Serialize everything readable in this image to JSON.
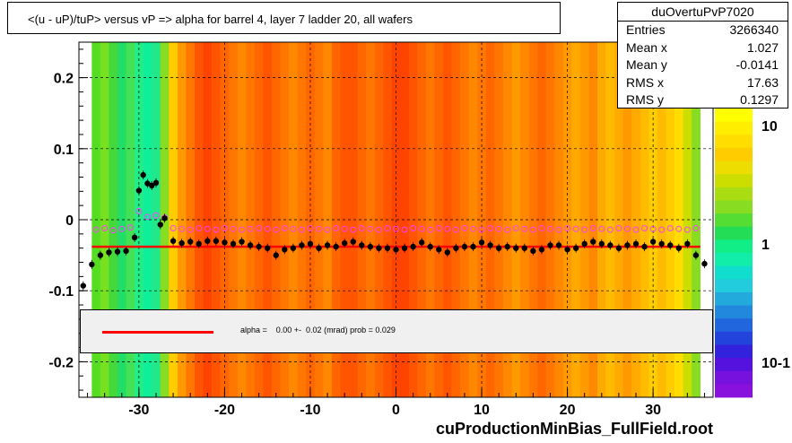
{
  "title": "<(u - uP)/tuP>  versus   vP => alpha for barrel 4, layer 7 ladder 20, all wafers",
  "stats": {
    "name": "duOvertuPvP7020",
    "rows": [
      {
        "key": "Entries",
        "value": "3266340"
      },
      {
        "key": "Mean x",
        "value": "1.027"
      },
      {
        "key": "Mean y",
        "value": "-0.0141"
      },
      {
        "key": "RMS x",
        "value": "17.63"
      },
      {
        "key": "RMS y",
        "value": "0.1297"
      }
    ]
  },
  "fit_label": "alpha =    0.00 +-  0.02 (mrad) prob = 0.029",
  "footer": "cuProductionMinBias_FullField.root",
  "colors": {
    "fit_line": "#ff0000",
    "profile_markers": "#000000",
    "open_markers": "#ff40ff"
  },
  "chart_data": {
    "type": "heatmap",
    "xlim": [
      -37,
      37
    ],
    "ylim": [
      -0.25,
      0.25
    ],
    "x_ticks": [
      "-30",
      "-20",
      "-10",
      "0",
      "10",
      "20",
      "30"
    ],
    "y_ticks": [
      "0.2",
      "0.1",
      "0",
      "-0.1",
      "-0.2"
    ],
    "x_tick_values": [
      -30,
      -20,
      -10,
      0,
      10,
      20,
      30
    ],
    "y_tick_values": [
      0.2,
      0.1,
      0,
      -0.1,
      -0.2
    ],
    "grid": true,
    "palette_ticks": [
      "10",
      "1",
      "10-1"
    ],
    "fit": {
      "type": "line",
      "y": -0.038,
      "x_range": [
        -35.5,
        35.5
      ]
    },
    "profile": {
      "name": "mean profile (filled)",
      "x": [
        -36.5,
        -35.5,
        -34.5,
        -33.5,
        -32.5,
        -31.5,
        -30.5,
        -30,
        -29.5,
        -29,
        -28.5,
        -28,
        -27.5,
        -27,
        -26,
        -25,
        -24,
        -23,
        -22,
        -21,
        -20,
        -19,
        -18,
        -17,
        -16,
        -15,
        -14,
        -13,
        -12,
        -11,
        -10,
        -9,
        -8,
        -7,
        -6,
        -5,
        -4,
        -3,
        -2,
        -1,
        0,
        1,
        2,
        3,
        4,
        5,
        6,
        7,
        8,
        9,
        10,
        11,
        12,
        13,
        14,
        15,
        16,
        17,
        18,
        19,
        20,
        21,
        22,
        23,
        24,
        25,
        26,
        27,
        28,
        29,
        30,
        31,
        32,
        33,
        34,
        35,
        36
      ],
      "y": [
        -0.093,
        -0.063,
        -0.05,
        -0.046,
        -0.045,
        -0.044,
        -0.025,
        0.041,
        0.063,
        0.051,
        0.048,
        0.052,
        -0.007,
        0.002,
        -0.03,
        -0.033,
        -0.031,
        -0.034,
        -0.03,
        -0.03,
        -0.032,
        -0.034,
        -0.031,
        -0.036,
        -0.038,
        -0.04,
        -0.05,
        -0.042,
        -0.04,
        -0.036,
        -0.034,
        -0.04,
        -0.036,
        -0.038,
        -0.033,
        -0.031,
        -0.036,
        -0.038,
        -0.04,
        -0.04,
        -0.042,
        -0.04,
        -0.038,
        -0.032,
        -0.038,
        -0.042,
        -0.046,
        -0.04,
        -0.038,
        -0.038,
        -0.032,
        -0.036,
        -0.04,
        -0.038,
        -0.04,
        -0.04,
        -0.044,
        -0.042,
        -0.036,
        -0.036,
        -0.042,
        -0.04,
        -0.034,
        -0.031,
        -0.034,
        -0.036,
        -0.04,
        -0.036,
        -0.034,
        -0.038,
        -0.031,
        -0.034,
        -0.036,
        -0.04,
        -0.034,
        -0.05,
        -0.062
      ]
    },
    "open_profile": {
      "name": "open markers",
      "x": [
        -35,
        -34,
        -33,
        -32,
        -31,
        -30,
        -29,
        -28,
        -27,
        -26,
        -25,
        -24,
        -23,
        -22,
        -21,
        -20,
        -19,
        -18,
        -17,
        -16,
        -15,
        -14,
        -13,
        -12,
        -11,
        -10,
        -9,
        -8,
        -7,
        -6,
        -5,
        -4,
        -3,
        -2,
        -1,
        0,
        1,
        2,
        3,
        4,
        5,
        6,
        7,
        8,
        9,
        10,
        11,
        12,
        13,
        14,
        15,
        16,
        17,
        18,
        19,
        20,
        21,
        22,
        23,
        24,
        25,
        26,
        27,
        28,
        29,
        30,
        31,
        32,
        33,
        34,
        35
      ],
      "y": [
        -0.014,
        -0.012,
        -0.015,
        -0.013,
        -0.011,
        0.012,
        0.004,
        0.006,
        0.003,
        -0.012,
        -0.013,
        -0.014,
        -0.012,
        -0.013,
        -0.014,
        -0.012,
        -0.013,
        -0.014,
        -0.013,
        -0.012,
        -0.013,
        -0.014,
        -0.012,
        -0.013,
        -0.014,
        -0.012,
        -0.013,
        -0.014,
        -0.012,
        -0.013,
        -0.014,
        -0.012,
        -0.013,
        -0.014,
        -0.012,
        -0.013,
        -0.014,
        -0.012,
        -0.013,
        -0.014,
        -0.012,
        -0.013,
        -0.014,
        -0.012,
        -0.013,
        -0.014,
        -0.012,
        -0.013,
        -0.014,
        -0.012,
        -0.013,
        -0.014,
        -0.012,
        -0.013,
        -0.014,
        -0.012,
        -0.013,
        -0.014,
        -0.012,
        -0.013,
        -0.014,
        -0.012,
        -0.013,
        -0.014,
        -0.012,
        -0.013,
        -0.014,
        -0.012,
        -0.013,
        -0.014,
        -0.012
      ]
    },
    "columns": {
      "x_edges_start": -35.5,
      "bin_width": 1,
      "colors": [
        "#55dd22",
        "#77e020",
        "#44d83a",
        "#22dd66",
        "#44e055",
        "#22ee88",
        "#11ee99",
        "#22e88a",
        "#88dd22",
        "#ffcc00",
        "#ff9900",
        "#ff7700",
        "#ff5500",
        "#ff4400",
        "#ff5500",
        "#ff6600",
        "#ff7700",
        "#ff8800",
        "#ff7700",
        "#ff6600",
        "#ff5500",
        "#ff6600",
        "#ff7700",
        "#ff8800",
        "#ff7700",
        "#ff6600",
        "#ff7700",
        "#ff8800",
        "#ff6600",
        "#ff5500",
        "#ff5500",
        "#ff6600",
        "#ff7700",
        "#ff6600",
        "#ff5500",
        "#ff4400",
        "#ff4400",
        "#ff5500",
        "#ff6600",
        "#ff7700",
        "#ff6600",
        "#ff5500",
        "#ff6600",
        "#ff7700",
        "#ff8800",
        "#ff7700",
        "#ff6600",
        "#ff7700",
        "#ff8800",
        "#ff9900",
        "#ff8800",
        "#ff7700",
        "#ff6600",
        "#ff7700",
        "#ff8800",
        "#ff9900",
        "#ffaa00",
        "#ff9900",
        "#ff8800",
        "#ffaa00",
        "#ffbb00",
        "#ffaa00",
        "#ff9900",
        "#ffaa00",
        "#ffbb00",
        "#ffcc00",
        "#ffbb00",
        "#ffcc00",
        "#ffdd00",
        "#ccdd00",
        "#88dd22"
      ]
    }
  }
}
